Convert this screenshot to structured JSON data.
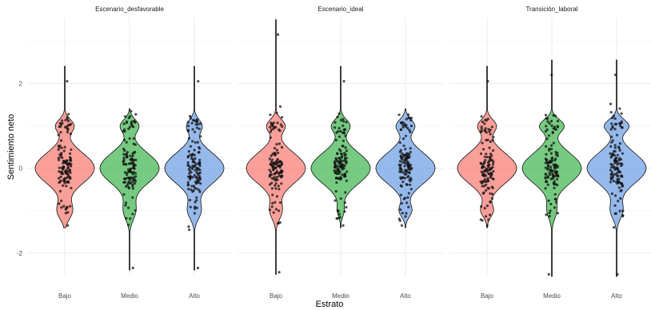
{
  "chart_data": {
    "type": "violin",
    "xlabel": "Estrato",
    "ylabel": "Sentimiento neto",
    "ylim": [
      -2.55,
      3.55
    ],
    "yticks": [
      -2,
      0,
      2
    ],
    "categories": [
      "Bajo",
      "Medio",
      "Alto"
    ],
    "colors": {
      "Bajo": "#F8766D",
      "Medio": "#3CB44B",
      "Alto": "#6A9BE3"
    },
    "grid": true,
    "legend": "none",
    "facets": [
      {
        "name": "Escenario_desfavorable",
        "groups": [
          {
            "category": "Bajo",
            "min": -1.4,
            "max": 2.4,
            "modes": [
              [
                0,
                1.0,
                0.36
              ],
              [
                1.0,
                0.3,
                0.15
              ],
              [
                -1.0,
                0.25,
                0.2
              ]
            ]
          },
          {
            "category": "Medio",
            "min": -2.4,
            "max": 1.4,
            "modes": [
              [
                0,
                1.0,
                0.36
              ],
              [
                1.0,
                0.3,
                0.15
              ],
              [
                -1.0,
                0.2,
                0.22
              ]
            ]
          },
          {
            "category": "Alto",
            "min": -2.4,
            "max": 2.4,
            "modes": [
              [
                0,
                1.0,
                0.36
              ],
              [
                1.0,
                0.25,
                0.15
              ],
              [
                -1.0,
                0.22,
                0.2
              ]
            ]
          }
        ]
      },
      {
        "name": "Escenario_ideal",
        "groups": [
          {
            "category": "Bajo",
            "min": -2.5,
            "max": 3.5,
            "modes": [
              [
                0,
                1.0,
                0.36
              ],
              [
                1.0,
                0.3,
                0.15
              ],
              [
                -1.0,
                0.2,
                0.2
              ]
            ]
          },
          {
            "category": "Medio",
            "min": -1.4,
            "max": 2.4,
            "modes": [
              [
                0,
                1.0,
                0.36
              ],
              [
                1.0,
                0.3,
                0.15
              ],
              [
                -1.0,
                0.1,
                0.15
              ]
            ]
          },
          {
            "category": "Alto",
            "min": -1.4,
            "max": 1.4,
            "modes": [
              [
                0,
                1.0,
                0.36
              ],
              [
                1.0,
                0.3,
                0.15
              ],
              [
                -1.0,
                0.2,
                0.15
              ]
            ]
          }
        ]
      },
      {
        "name": "Transición_laboral",
        "groups": [
          {
            "category": "Bajo",
            "min": -1.4,
            "max": 2.4,
            "modes": [
              [
                0,
                1.0,
                0.36
              ],
              [
                1.0,
                0.3,
                0.15
              ],
              [
                -1.0,
                0.2,
                0.15
              ]
            ]
          },
          {
            "category": "Medio",
            "min": -2.55,
            "max": 2.55,
            "modes": [
              [
                0,
                1.0,
                0.36
              ],
              [
                1.0,
                0.4,
                0.15
              ],
              [
                -1.0,
                0.15,
                0.2
              ]
            ]
          },
          {
            "category": "Alto",
            "min": -2.55,
            "max": 2.55,
            "modes": [
              [
                0,
                1.0,
                0.36
              ],
              [
                1.0,
                0.4,
                0.15
              ],
              [
                -1.0,
                0.2,
                0.2
              ]
            ]
          }
        ]
      }
    ]
  }
}
